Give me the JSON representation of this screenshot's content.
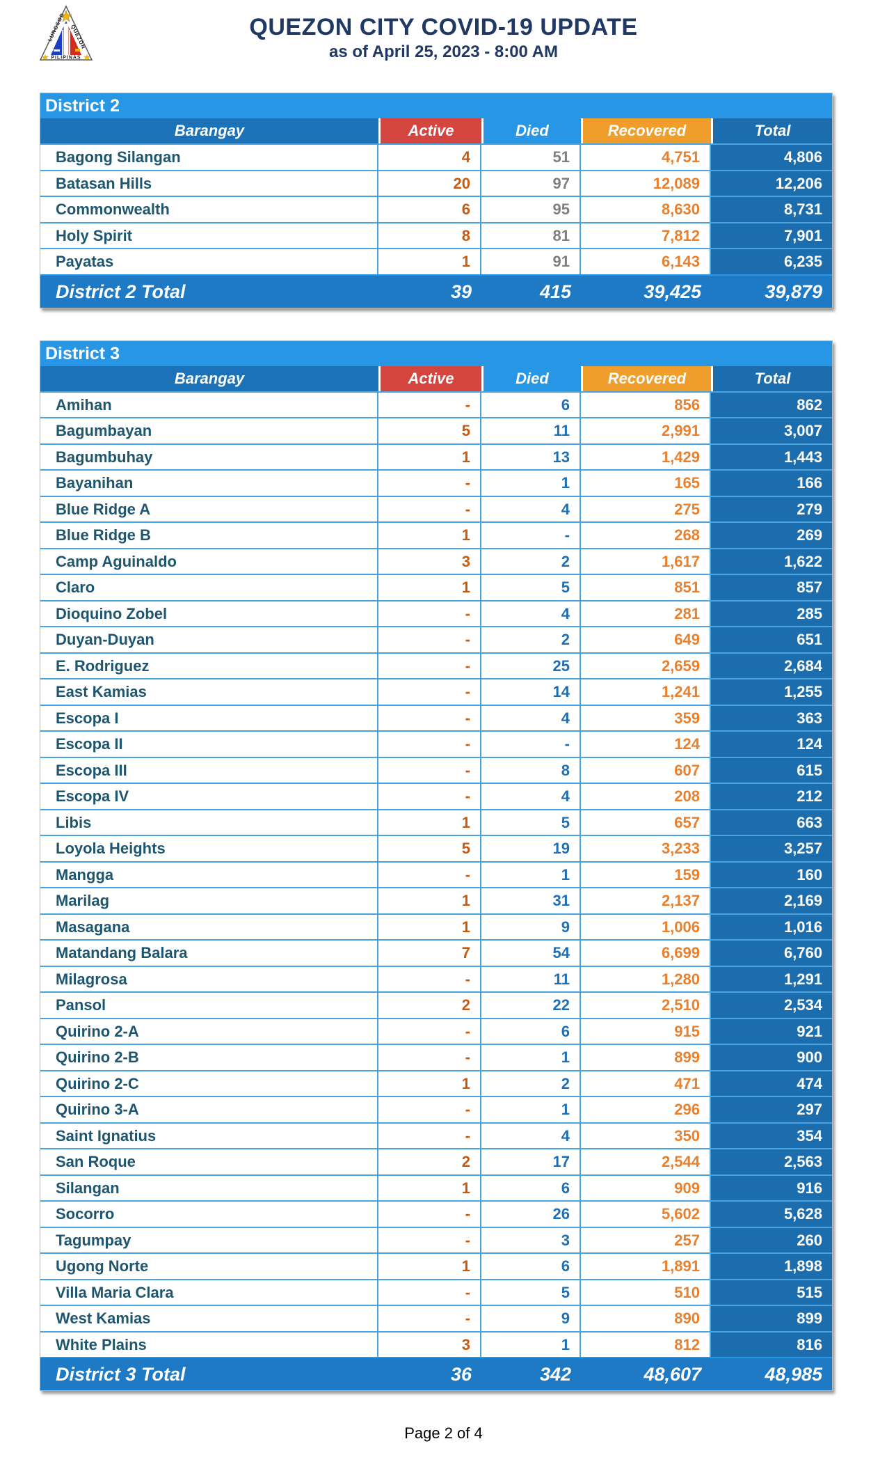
{
  "header": {
    "title": "QUEZON CITY COVID-19 UPDATE",
    "subtitle": "as of April 25, 2023 - 8:00 AM",
    "logo": {
      "lungsod": "LUNGSOD",
      "quezon": "QUEZON",
      "pilipinas": "PILIPINAS"
    }
  },
  "districts": [
    {
      "name": "District 2",
      "columns": [
        "Barangay",
        "Active",
        "Died",
        "Recovered",
        "Total"
      ],
      "rows": [
        [
          "Bagong Silangan",
          "4",
          "51",
          "4,751",
          "4,806"
        ],
        [
          "Batasan Hills",
          "20",
          "97",
          "12,089",
          "12,206"
        ],
        [
          "Commonwealth",
          "6",
          "95",
          "8,630",
          "8,731"
        ],
        [
          "Holy Spirit",
          "8",
          "81",
          "7,812",
          "7,901"
        ],
        [
          "Payatas",
          "1",
          "91",
          "6,143",
          "6,235"
        ]
      ],
      "total_row": [
        "District 2 Total",
        "39",
        "415",
        "39,425",
        "39,879"
      ]
    },
    {
      "name": "District 3",
      "columns": [
        "Barangay",
        "Active",
        "Died",
        "Recovered",
        "Total"
      ],
      "rows": [
        [
          "Amihan",
          "-",
          "6",
          "856",
          "862"
        ],
        [
          "Bagumbayan",
          "5",
          "11",
          "2,991",
          "3,007"
        ],
        [
          "Bagumbuhay",
          "1",
          "13",
          "1,429",
          "1,443"
        ],
        [
          "Bayanihan",
          "-",
          "1",
          "165",
          "166"
        ],
        [
          "Blue Ridge A",
          "-",
          "4",
          "275",
          "279"
        ],
        [
          "Blue Ridge B",
          "1",
          "-",
          "268",
          "269"
        ],
        [
          "Camp Aguinaldo",
          "3",
          "2",
          "1,617",
          "1,622"
        ],
        [
          "Claro",
          "1",
          "5",
          "851",
          "857"
        ],
        [
          "Dioquino Zobel",
          "-",
          "4",
          "281",
          "285"
        ],
        [
          "Duyan-Duyan",
          "-",
          "2",
          "649",
          "651"
        ],
        [
          "E. Rodriguez",
          "-",
          "25",
          "2,659",
          "2,684"
        ],
        [
          "East Kamias",
          "-",
          "14",
          "1,241",
          "1,255"
        ],
        [
          "Escopa I",
          "-",
          "4",
          "359",
          "363"
        ],
        [
          "Escopa II",
          "-",
          "-",
          "124",
          "124"
        ],
        [
          "Escopa III",
          "-",
          "8",
          "607",
          "615"
        ],
        [
          "Escopa IV",
          "-",
          "4",
          "208",
          "212"
        ],
        [
          "Libis",
          "1",
          "5",
          "657",
          "663"
        ],
        [
          "Loyola Heights",
          "5",
          "19",
          "3,233",
          "3,257"
        ],
        [
          "Mangga",
          "-",
          "1",
          "159",
          "160"
        ],
        [
          "Marilag",
          "1",
          "31",
          "2,137",
          "2,169"
        ],
        [
          "Masagana",
          "1",
          "9",
          "1,006",
          "1,016"
        ],
        [
          "Matandang Balara",
          "7",
          "54",
          "6,699",
          "6,760"
        ],
        [
          "Milagrosa",
          "-",
          "11",
          "1,280",
          "1,291"
        ],
        [
          "Pansol",
          "2",
          "22",
          "2,510",
          "2,534"
        ],
        [
          "Quirino 2-A",
          "-",
          "6",
          "915",
          "921"
        ],
        [
          "Quirino 2-B",
          "-",
          "1",
          "899",
          "900"
        ],
        [
          "Quirino 2-C",
          "1",
          "2",
          "471",
          "474"
        ],
        [
          "Quirino 3-A",
          "-",
          "1",
          "296",
          "297"
        ],
        [
          "Saint Ignatius",
          "-",
          "4",
          "350",
          "354"
        ],
        [
          "San Roque",
          "2",
          "17",
          "2,544",
          "2,563"
        ],
        [
          "Silangan",
          "1",
          "6",
          "909",
          "916"
        ],
        [
          "Socorro",
          "-",
          "26",
          "5,602",
          "5,628"
        ],
        [
          "Tagumpay",
          "-",
          "3",
          "257",
          "260"
        ],
        [
          "Ugong Norte",
          "1",
          "6",
          "1,891",
          "1,898"
        ],
        [
          "Villa Maria Clara",
          "-",
          "5",
          "510",
          "515"
        ],
        [
          "West Kamias",
          "-",
          "9",
          "890",
          "899"
        ],
        [
          "White Plains",
          "3",
          "1",
          "812",
          "816"
        ]
      ],
      "total_row": [
        "District 3 Total",
        "36",
        "342",
        "48,607",
        "48,985"
      ]
    }
  ],
  "footer": {
    "page_label": "Page 2 of 4"
  },
  "colors": {
    "title_navy": "#1F3864",
    "band_blue": "#2796E4",
    "barangay_header_blue": "#1B72B8",
    "active_header_red": "#D4453F",
    "died_header_blue": "#2796E4",
    "recovered_header_orange": "#EF9D2B",
    "total_column_blue": "#1C6DAD",
    "district_total_row_blue": "#1F7AC5",
    "barangay_text": "#1E566F",
    "active_value": "#C55A11",
    "died_value_district2": "#7F7F7F",
    "died_value_district3": "#1F6FB5",
    "recovered_value": "#E8802D",
    "grid_blue": "#49A4E0"
  }
}
